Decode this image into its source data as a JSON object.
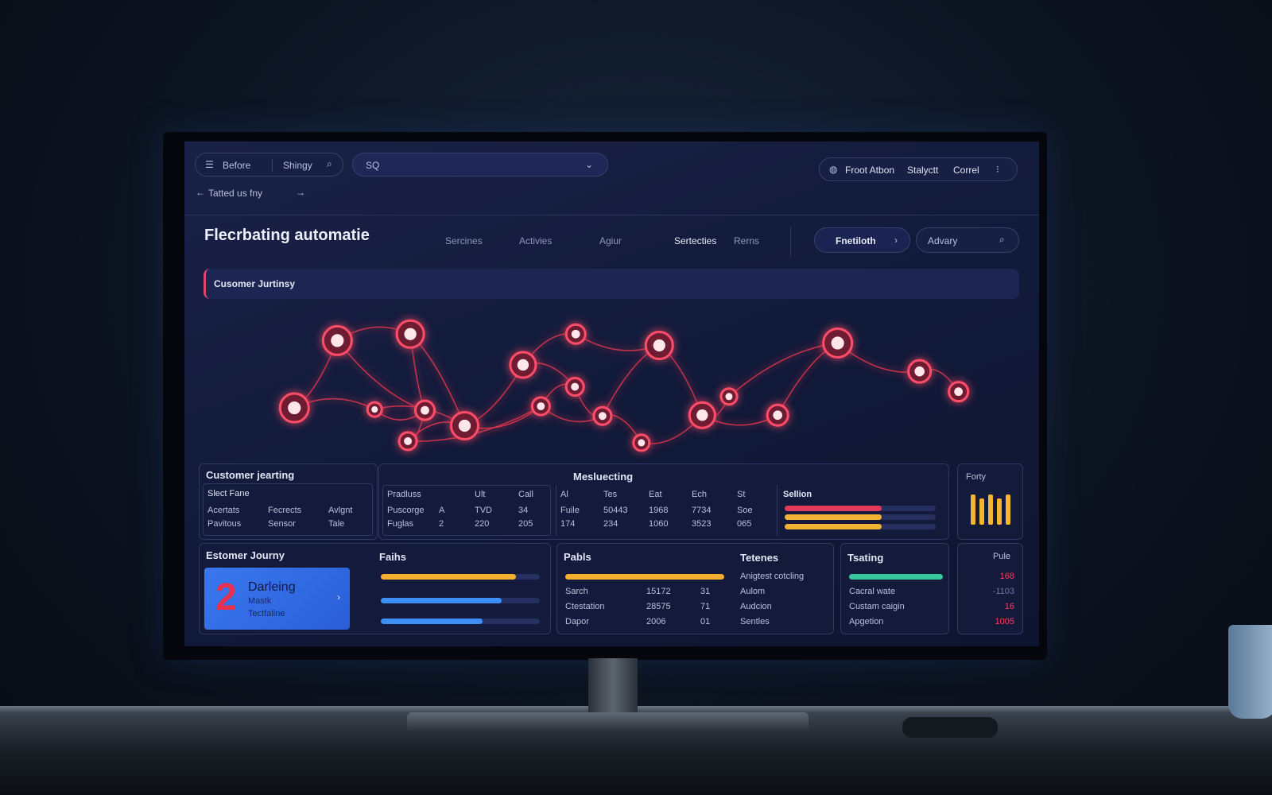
{
  "toolbar": {
    "menu": "Before",
    "search_label": "Shingy",
    "query": "SQ",
    "actions": [
      "Froot Atbon",
      "Stalyctt",
      "Correl"
    ]
  },
  "breadcrumb": "Tatted us fny",
  "header": {
    "title": "Flecrbating automatie",
    "nav": [
      "Sercines",
      "Activies",
      "Agiur",
      "Sertecties",
      "Rerns"
    ],
    "button": "Fnetiloth",
    "search": "Advary"
  },
  "journey_title": "Cusomer Jurtinsy",
  "panels": {
    "customer": {
      "title": "Customer jearting",
      "subtitle": "Slect Fane",
      "items": [
        "Acertats",
        "Fecrects",
        "Avlgnt",
        "Pavitous",
        "Sensor",
        "Tale"
      ]
    },
    "marketing": {
      "title": "Mesluecting",
      "headers": [
        "Pradluss",
        "Ult",
        "Call"
      ],
      "rows": [
        [
          "Puscorge",
          "A",
          "TVD",
          "34"
        ],
        [
          "Fuglas",
          "2",
          "220",
          "205"
        ]
      ],
      "headers2": [
        "Al",
        "Tes",
        "Eat",
        "Ech",
        "St"
      ],
      "rows2": [
        [
          "Fuile",
          "50443",
          "1968",
          "7734",
          "Soe"
        ],
        [
          "174",
          "234",
          "1060",
          "3523",
          "065"
        ]
      ],
      "bars_title": "Sellion"
    },
    "forty": {
      "title": "Forty"
    },
    "journey": {
      "title": "Estomer Journy",
      "card_number": "2",
      "card_title": "Darleing",
      "card_lines": [
        "Mastk",
        "Tectfaline"
      ]
    },
    "faihs": {
      "title": "Faihs"
    },
    "pabls": {
      "title": "Pabls",
      "rows": [
        [
          "Sarch",
          "15172",
          "31"
        ],
        [
          "Ctestation",
          "28575",
          "71"
        ],
        [
          "Dapor",
          "2006",
          "01"
        ]
      ]
    },
    "tetenes": {
      "title": "Tetenes",
      "items": [
        "Anigtest cotcling",
        "Aulom",
        "Audcion",
        "Sentles"
      ]
    },
    "tsating": {
      "title": "Tsating",
      "items": [
        "Cacral wate",
        "Custam caigin",
        "Apgetion"
      ]
    },
    "pule": {
      "title": "Pule",
      "values": [
        "168",
        "-1103",
        "16",
        "1005"
      ]
    }
  }
}
